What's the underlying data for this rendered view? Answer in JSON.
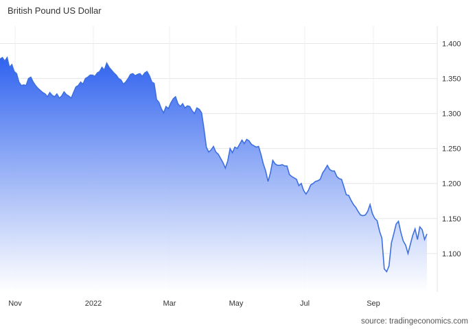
{
  "chart_data": {
    "type": "area",
    "title": "British Pound US Dollar",
    "source": "source: tradingeconomics.com",
    "xlabel": "",
    "ylabel": "",
    "x_ticks": [
      "Nov",
      "2022",
      "Mar",
      "May",
      "Jul",
      "Sep"
    ],
    "y_ticks": [
      "1.400",
      "1.350",
      "1.300",
      "1.250",
      "1.200",
      "1.150",
      "1.100"
    ],
    "ylim": [
      1.05,
      1.45
    ],
    "grid": true,
    "colors": {
      "line": "#3d6fe0",
      "fill_top": "#2f62ee",
      "fill_bottom": "#ffffff",
      "grid": "#e6e6e6"
    },
    "series": [
      {
        "values": [
          1.378,
          1.38,
          1.375,
          1.38,
          1.366,
          1.37,
          1.36,
          1.357,
          1.345,
          1.34,
          1.341,
          1.34,
          1.35,
          1.352,
          1.345,
          1.34,
          1.336,
          1.333,
          1.33,
          1.328,
          1.324,
          1.33,
          1.326,
          1.324,
          1.328,
          1.322,
          1.325,
          1.331,
          1.327,
          1.325,
          1.322,
          1.33,
          1.338,
          1.34,
          1.345,
          1.342,
          1.35,
          1.352,
          1.355,
          1.355,
          1.353,
          1.358,
          1.36,
          1.366,
          1.362,
          1.372,
          1.366,
          1.362,
          1.358,
          1.355,
          1.35,
          1.348,
          1.342,
          1.345,
          1.35,
          1.356,
          1.357,
          1.354,
          1.356,
          1.357,
          1.353,
          1.358,
          1.36,
          1.354,
          1.345,
          1.343,
          1.32,
          1.316,
          1.307,
          1.301,
          1.31,
          1.307,
          1.315,
          1.321,
          1.324,
          1.314,
          1.31,
          1.314,
          1.308,
          1.311,
          1.31,
          1.304,
          1.3,
          1.308,
          1.306,
          1.301,
          1.278,
          1.252,
          1.245,
          1.248,
          1.253,
          1.245,
          1.242,
          1.236,
          1.23,
          1.222,
          1.232,
          1.25,
          1.244,
          1.252,
          1.25,
          1.256,
          1.262,
          1.257,
          1.263,
          1.261,
          1.256,
          1.254,
          1.252,
          1.253,
          1.242,
          1.228,
          1.218,
          1.203,
          1.215,
          1.233,
          1.228,
          1.226,
          1.226,
          1.227,
          1.225,
          1.225,
          1.213,
          1.21,
          1.208,
          1.206,
          1.197,
          1.2,
          1.19,
          1.185,
          1.19,
          1.198,
          1.2,
          1.203,
          1.204,
          1.206,
          1.215,
          1.22,
          1.226,
          1.22,
          1.218,
          1.218,
          1.21,
          1.207,
          1.206,
          1.195,
          1.184,
          1.183,
          1.176,
          1.17,
          1.166,
          1.16,
          1.155,
          1.154,
          1.155,
          1.16,
          1.17,
          1.157,
          1.15,
          1.147,
          1.132,
          1.122,
          1.078,
          1.074,
          1.082,
          1.115,
          1.128,
          1.142,
          1.146,
          1.13,
          1.118,
          1.112,
          1.1,
          1.113,
          1.126,
          1.135,
          1.12,
          1.138,
          1.134,
          1.12,
          1.128
        ]
      }
    ]
  }
}
